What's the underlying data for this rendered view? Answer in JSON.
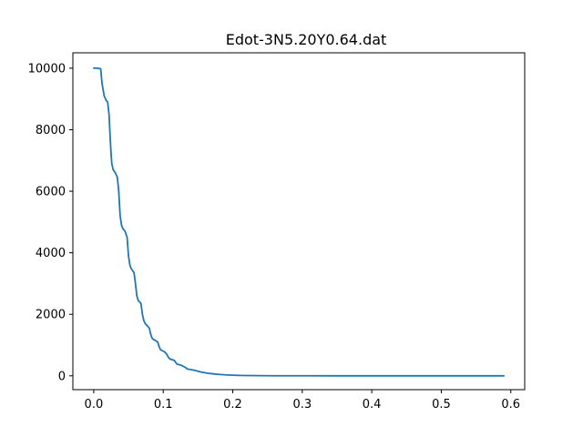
{
  "chart_data": {
    "type": "line",
    "title": "Edot-3N5.20Y0.64.dat",
    "xlabel": "",
    "ylabel": "",
    "xlim": [
      -0.03,
      0.62
    ],
    "ylim": [
      -450,
      10500
    ],
    "grid": false,
    "xticks": [
      0.0,
      0.1,
      0.2,
      0.3,
      0.4,
      0.5,
      0.6
    ],
    "xtick_labels": [
      "0.0",
      "0.1",
      "0.2",
      "0.3",
      "0.4",
      "0.5",
      "0.6"
    ],
    "yticks": [
      0,
      2000,
      4000,
      6000,
      8000,
      10000
    ],
    "ytick_labels": [
      "0",
      "2000",
      "4000",
      "6000",
      "8000",
      "10000"
    ],
    "series": [
      {
        "color": "#1f77b4",
        "x": [
          0.0,
          0.005,
          0.01,
          0.012,
          0.015,
          0.018,
          0.02,
          0.022,
          0.024,
          0.025,
          0.026,
          0.028,
          0.031,
          0.034,
          0.036,
          0.038,
          0.04,
          0.042,
          0.045,
          0.048,
          0.05,
          0.052,
          0.054,
          0.056,
          0.058,
          0.06,
          0.062,
          0.064,
          0.066,
          0.068,
          0.07,
          0.072,
          0.074,
          0.076,
          0.08,
          0.082,
          0.084,
          0.086,
          0.088,
          0.092,
          0.094,
          0.096,
          0.1,
          0.102,
          0.105,
          0.108,
          0.11,
          0.112,
          0.116,
          0.118,
          0.12,
          0.125,
          0.128,
          0.132,
          0.135,
          0.14,
          0.145,
          0.15,
          0.155,
          0.16,
          0.165,
          0.17,
          0.175,
          0.18,
          0.19,
          0.2,
          0.21,
          0.22,
          0.24,
          0.26,
          0.3,
          0.35,
          0.4,
          0.5,
          0.59
        ],
        "y": [
          10000,
          10000,
          9980,
          9500,
          9100,
          8950,
          8900,
          8500,
          7600,
          7200,
          6900,
          6700,
          6600,
          6450,
          6000,
          5200,
          4900,
          4780,
          4700,
          4500,
          3900,
          3600,
          3480,
          3420,
          3350,
          3000,
          2600,
          2450,
          2400,
          2350,
          2000,
          1800,
          1700,
          1650,
          1550,
          1350,
          1220,
          1180,
          1160,
          1100,
          950,
          850,
          800,
          780,
          700,
          580,
          540,
          530,
          500,
          430,
          380,
          350,
          320,
          270,
          220,
          200,
          180,
          150,
          120,
          100,
          80,
          70,
          55,
          45,
          30,
          20,
          12,
          8,
          4,
          2,
          1,
          0,
          0,
          0,
          0
        ]
      }
    ]
  }
}
